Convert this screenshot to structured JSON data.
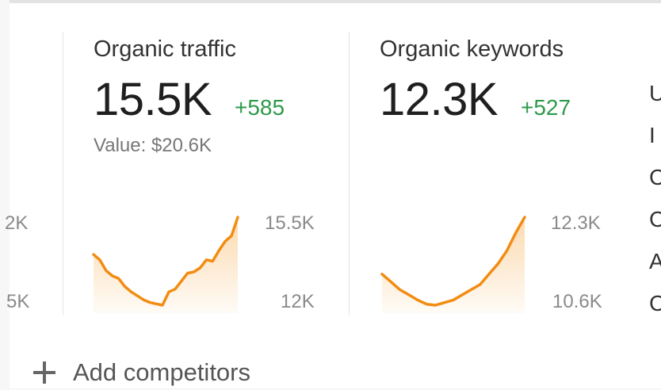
{
  "cards": [
    {
      "title": "Organic traffic",
      "value": "15.5K",
      "delta": "+585",
      "sub": "Value: $20.6K",
      "axis_max": "15.5K",
      "axis_min": "12K",
      "series": [
        13.9,
        13.7,
        13.3,
        13.1,
        13.0,
        12.7,
        12.5,
        12.35,
        12.2,
        12.1,
        12.05,
        12.0,
        12.5,
        12.6,
        12.9,
        13.2,
        13.25,
        13.4,
        13.7,
        13.65,
        14.05,
        14.4,
        14.6,
        15.3
      ]
    },
    {
      "title": "Organic keywords",
      "value": "12.3K",
      "delta": "+527",
      "axis_max": "12.3K",
      "axis_min": "10.6K",
      "series": [
        11.2,
        11.05,
        10.9,
        10.8,
        10.7,
        10.62,
        10.6,
        10.65,
        10.7,
        10.8,
        10.9,
        11.0,
        11.2,
        11.4,
        11.65,
        12.0,
        12.3
      ]
    }
  ],
  "left_partial_axis": {
    "max": "2K",
    "min": "5K"
  },
  "right_partial_letters": [
    "U",
    "I",
    "C",
    "C",
    "A",
    "C"
  ],
  "add_competitors": {
    "label": "Add competitors"
  },
  "colors": {
    "line": "#f28c12",
    "fill": "#fbd6a6",
    "delta": "#2e9a4a"
  }
}
